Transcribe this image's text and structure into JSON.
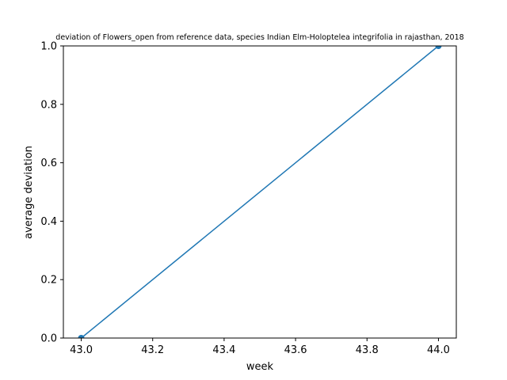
{
  "chart_data": {
    "type": "line",
    "title": "deviation of Flowers_open from reference data, species Indian Elm-Holoptelea integrifolia in rajasthan, 2018",
    "xlabel": "week",
    "ylabel": "average deviation",
    "xlim": [
      42.95,
      44.05
    ],
    "ylim": [
      0.0,
      1.0
    ],
    "xticks": [
      43.0,
      43.2,
      43.4,
      43.6,
      43.8,
      44.0
    ],
    "xtick_labels": [
      "43.0",
      "43.2",
      "43.4",
      "43.6",
      "43.8",
      "44.0"
    ],
    "yticks": [
      0.0,
      0.2,
      0.4,
      0.6,
      0.8,
      1.0
    ],
    "ytick_labels": [
      "0.0",
      "0.2",
      "0.4",
      "0.6",
      "0.8",
      "1.0"
    ],
    "grid": false,
    "series": [
      {
        "color": "#1f77b4",
        "marker": "circle",
        "x": [
          43.0,
          44.0
        ],
        "y": [
          0.0,
          1.0
        ]
      }
    ]
  }
}
